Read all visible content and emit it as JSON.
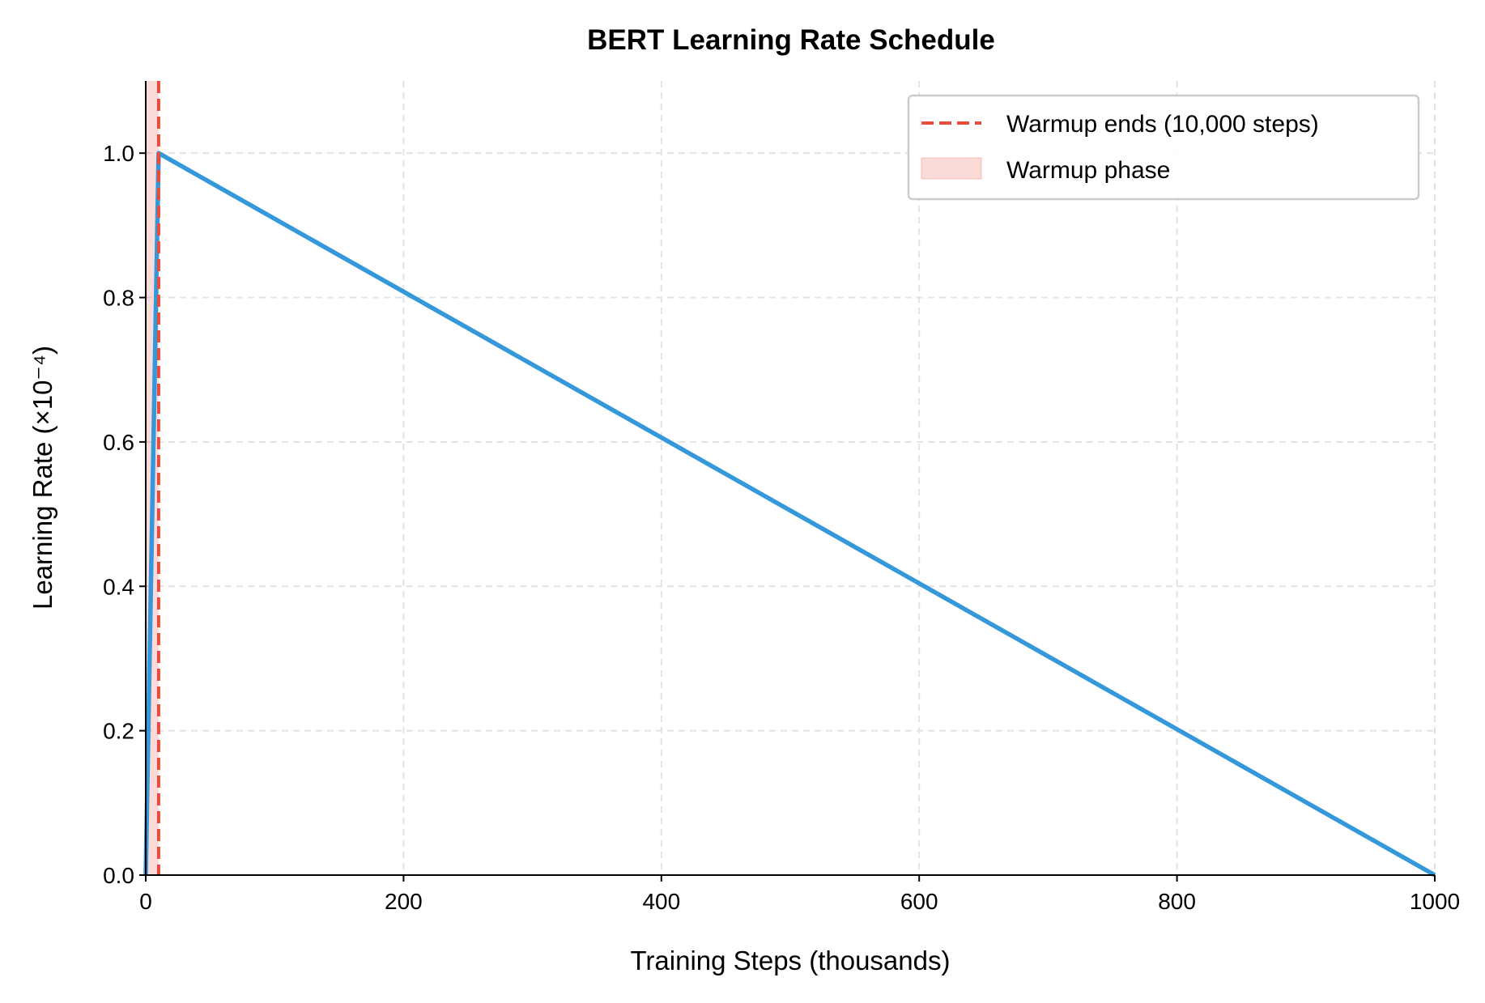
{
  "chart_data": {
    "type": "line",
    "title": "BERT Learning Rate Schedule",
    "xlabel": "Training Steps (thousands)",
    "ylabel": "Learning Rate (×10⁻⁴)",
    "xlim": [
      0,
      1000
    ],
    "ylim": [
      0,
      1.1
    ],
    "xticks": [
      "0",
      "200",
      "400",
      "600",
      "800",
      "1000"
    ],
    "xtick_values": [
      0,
      200,
      400,
      600,
      800,
      1000
    ],
    "yticks": [
      "0.0",
      "0.2",
      "0.4",
      "0.6",
      "0.8",
      "1.0"
    ],
    "ytick_values": [
      0,
      0.2,
      0.4,
      0.6,
      0.8,
      1.0
    ],
    "grid": true,
    "legend_position": "top-right",
    "series": [
      {
        "x": [
          0,
          10,
          1000
        ],
        "y": [
          0,
          1.0,
          0
        ],
        "color": "#3498db"
      }
    ],
    "vline": {
      "x": 10,
      "label": "Warmup ends (10,000 steps)",
      "color": "#e74c3c",
      "style": "dashed"
    },
    "shaded_region": {
      "x": [
        0,
        10
      ],
      "label": "Warmup phase",
      "color": "#e74c3c"
    }
  }
}
